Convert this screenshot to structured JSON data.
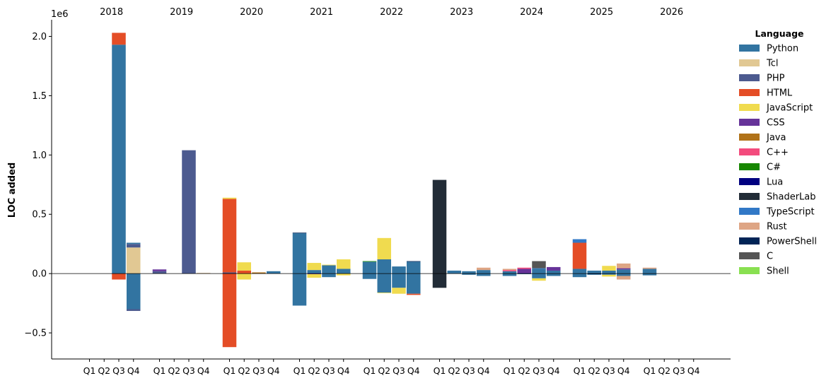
{
  "chart_data": {
    "type": "bar",
    "subtype": "stacked-diverging",
    "title": "",
    "ylabel": "LOC added",
    "xlabel": "",
    "y_scale_label": "1e6",
    "ylim": [
      -0.72,
      2.14
    ],
    "yticks": [
      -0.5,
      0.0,
      0.5,
      1.0,
      1.5,
      2.0
    ],
    "ytick_labels": [
      "−0.5",
      "0.0",
      "0.5",
      "1.0",
      "1.5",
      "2.0"
    ],
    "zero_line": true,
    "grid": false,
    "legend_title": "Language",
    "legend_position": "right",
    "years": [
      "2018",
      "2019",
      "2020",
      "2021",
      "2022",
      "2023",
      "2024",
      "2025",
      "2026"
    ],
    "quarters": [
      "Q1",
      "Q2",
      "Q3",
      "Q4"
    ],
    "series": [
      {
        "name": "Python",
        "color": "#3274a1"
      },
      {
        "name": "Tcl",
        "color": "#e1c893"
      },
      {
        "name": "PHP",
        "color": "#4c5a8f"
      },
      {
        "name": "HTML",
        "color": "#e44d26"
      },
      {
        "name": "JavaScript",
        "color": "#f0db4f"
      },
      {
        "name": "CSS",
        "color": "#663399"
      },
      {
        "name": "Java",
        "color": "#b07219"
      },
      {
        "name": "C++",
        "color": "#f34b7d"
      },
      {
        "name": "C#",
        "color": "#178600"
      },
      {
        "name": "Lua",
        "color": "#000080"
      },
      {
        "name": "ShaderLab",
        "color": "#222c37"
      },
      {
        "name": "TypeScript",
        "color": "#3178c6"
      },
      {
        "name": "Rust",
        "color": "#dea584"
      },
      {
        "name": "PowerShell",
        "color": "#012456"
      },
      {
        "name": "C",
        "color": "#555555"
      },
      {
        "name": "Shell",
        "color": "#89e051"
      }
    ],
    "values_unit": "millions of lines",
    "bars": [
      {
        "year": "2018",
        "quarter": "Q3",
        "pos": [
          {
            "lang": "Python",
            "v": 1.93
          },
          {
            "lang": "HTML",
            "v": 0.1
          }
        ],
        "neg": [
          {
            "lang": "HTML",
            "v": 0.05
          }
        ]
      },
      {
        "year": "2018",
        "quarter": "Q4",
        "pos": [
          {
            "lang": "Tcl",
            "v": 0.22
          },
          {
            "lang": "PHP",
            "v": 0.03
          },
          {
            "lang": "Python",
            "v": 0.01
          }
        ],
        "neg": [
          {
            "lang": "Python",
            "v": 0.3
          },
          {
            "lang": "PHP",
            "v": 0.015
          }
        ]
      },
      {
        "year": "2019",
        "quarter": "Q1",
        "pos": [
          {
            "lang": "PHP",
            "v": 0.02
          },
          {
            "lang": "CSS",
            "v": 0.015
          }
        ],
        "neg": []
      },
      {
        "year": "2019",
        "quarter": "Q3",
        "pos": [
          {
            "lang": "PHP",
            "v": 1.04
          }
        ],
        "neg": []
      },
      {
        "year": "2019",
        "quarter": "Q4",
        "pos": [
          {
            "lang": "Java",
            "v": 0.004
          }
        ],
        "neg": []
      },
      {
        "year": "2020",
        "quarter": "Q1",
        "pos": [
          {
            "lang": "PHP",
            "v": 0.01
          },
          {
            "lang": "HTML",
            "v": 0.62
          },
          {
            "lang": "JavaScript",
            "v": 0.01
          }
        ],
        "neg": [
          {
            "lang": "HTML",
            "v": 0.62
          }
        ]
      },
      {
        "year": "2020",
        "quarter": "Q2",
        "pos": [
          {
            "lang": "HTML",
            "v": 0.025
          },
          {
            "lang": "JavaScript",
            "v": 0.07
          }
        ],
        "neg": [
          {
            "lang": "JavaScript",
            "v": 0.05
          }
        ]
      },
      {
        "year": "2020",
        "quarter": "Q3",
        "pos": [
          {
            "lang": "Java",
            "v": 0.01
          }
        ],
        "neg": []
      },
      {
        "year": "2020",
        "quarter": "Q4",
        "pos": [
          {
            "lang": "Python",
            "v": 0.02
          }
        ],
        "neg": []
      },
      {
        "year": "2021",
        "quarter": "Q1",
        "pos": [
          {
            "lang": "Python",
            "v": 0.34
          },
          {
            "lang": "PowerShell",
            "v": 0.005
          }
        ],
        "neg": [
          {
            "lang": "Python",
            "v": 0.27
          }
        ]
      },
      {
        "year": "2021",
        "quarter": "Q2",
        "pos": [
          {
            "lang": "Python",
            "v": 0.03
          },
          {
            "lang": "JavaScript",
            "v": 0.06
          }
        ],
        "neg": [
          {
            "lang": "CSS",
            "v": 0.005
          },
          {
            "lang": "JavaScript",
            "v": 0.03
          }
        ]
      },
      {
        "year": "2021",
        "quarter": "Q3",
        "pos": [
          {
            "lang": "Python",
            "v": 0.07
          },
          {
            "lang": "JavaScript",
            "v": 0.005
          }
        ],
        "neg": [
          {
            "lang": "Python",
            "v": 0.03
          }
        ]
      },
      {
        "year": "2021",
        "quarter": "Q4",
        "pos": [
          {
            "lang": "Python",
            "v": 0.04
          },
          {
            "lang": "JavaScript",
            "v": 0.08
          }
        ],
        "neg": [
          {
            "lang": "JavaScript",
            "v": 0.015
          }
        ]
      },
      {
        "year": "2022",
        "quarter": "Q1",
        "pos": [
          {
            "lang": "Python",
            "v": 0.1
          },
          {
            "lang": "C#",
            "v": 0.005
          }
        ],
        "neg": [
          {
            "lang": "Python",
            "v": 0.045
          }
        ]
      },
      {
        "year": "2022",
        "quarter": "Q2",
        "pos": [
          {
            "lang": "Python",
            "v": 0.12
          },
          {
            "lang": "JavaScript",
            "v": 0.18
          }
        ],
        "neg": [
          {
            "lang": "Python",
            "v": 0.16
          },
          {
            "lang": "JavaScript",
            "v": 0.005
          }
        ]
      },
      {
        "year": "2022",
        "quarter": "Q3",
        "pos": [
          {
            "lang": "Python",
            "v": 0.06
          }
        ],
        "neg": [
          {
            "lang": "Python",
            "v": 0.12
          },
          {
            "lang": "JavaScript",
            "v": 0.05
          }
        ]
      },
      {
        "year": "2022",
        "quarter": "Q4",
        "pos": [
          {
            "lang": "Python",
            "v": 0.1
          },
          {
            "lang": "PowerShell",
            "v": 0.005
          }
        ],
        "neg": [
          {
            "lang": "Python",
            "v": 0.17
          },
          {
            "lang": "HTML",
            "v": 0.01
          }
        ]
      },
      {
        "year": "2023",
        "quarter": "Q1",
        "pos": [
          {
            "lang": "ShaderLab",
            "v": 0.79
          }
        ],
        "neg": [
          {
            "lang": "ShaderLab",
            "v": 0.12
          }
        ]
      },
      {
        "year": "2023",
        "quarter": "Q2",
        "pos": [
          {
            "lang": "Python",
            "v": 0.025
          }
        ],
        "neg": []
      },
      {
        "year": "2023",
        "quarter": "Q3",
        "pos": [
          {
            "lang": "Python",
            "v": 0.02
          }
        ],
        "neg": [
          {
            "lang": "Python",
            "v": 0.01
          }
        ]
      },
      {
        "year": "2023",
        "quarter": "Q4",
        "pos": [
          {
            "lang": "Python",
            "v": 0.03
          },
          {
            "lang": "Rust",
            "v": 0.02
          }
        ],
        "neg": [
          {
            "lang": "Python",
            "v": 0.02
          }
        ]
      },
      {
        "year": "2024",
        "quarter": "Q1",
        "pos": [
          {
            "lang": "Python",
            "v": 0.02
          },
          {
            "lang": "C++",
            "v": 0.01
          },
          {
            "lang": "Rust",
            "v": 0.01
          }
        ],
        "neg": [
          {
            "lang": "Python",
            "v": 0.02
          }
        ]
      },
      {
        "year": "2024",
        "quarter": "Q2",
        "pos": [
          {
            "lang": "CSS",
            "v": 0.04
          },
          {
            "lang": "C++",
            "v": 0.01
          }
        ],
        "neg": [
          {
            "lang": "Python",
            "v": 0.005
          }
        ]
      },
      {
        "year": "2024",
        "quarter": "Q3",
        "pos": [
          {
            "lang": "Python",
            "v": 0.04
          },
          {
            "lang": "TypeScript",
            "v": 0.005
          },
          {
            "lang": "C",
            "v": 0.06
          }
        ],
        "neg": [
          {
            "lang": "Python",
            "v": 0.04
          },
          {
            "lang": "JavaScript",
            "v": 0.02
          }
        ]
      },
      {
        "year": "2024",
        "quarter": "Q4",
        "pos": [
          {
            "lang": "Python",
            "v": 0.025
          },
          {
            "lang": "CSS",
            "v": 0.03
          }
        ],
        "neg": [
          {
            "lang": "Python",
            "v": 0.02
          }
        ]
      },
      {
        "year": "2025",
        "quarter": "Q1",
        "pos": [
          {
            "lang": "Python",
            "v": 0.04
          },
          {
            "lang": "HTML",
            "v": 0.22
          },
          {
            "lang": "TypeScript",
            "v": 0.03
          }
        ],
        "neg": [
          {
            "lang": "Python",
            "v": 0.03
          }
        ]
      },
      {
        "year": "2025",
        "quarter": "Q2",
        "pos": [
          {
            "lang": "Python",
            "v": 0.025
          }
        ],
        "neg": [
          {
            "lang": "PowerShell",
            "v": 0.005
          },
          {
            "lang": "Python",
            "v": 0.005
          }
        ]
      },
      {
        "year": "2025",
        "quarter": "Q3",
        "pos": [
          {
            "lang": "Python",
            "v": 0.025
          },
          {
            "lang": "JavaScript",
            "v": 0.04
          }
        ],
        "neg": [
          {
            "lang": "Python",
            "v": 0.01
          },
          {
            "lang": "JavaScript",
            "v": 0.015
          }
        ]
      },
      {
        "year": "2025",
        "quarter": "Q4",
        "pos": [
          {
            "lang": "Python",
            "v": 0.035
          },
          {
            "lang": "CSS",
            "v": 0.01
          },
          {
            "lang": "Rust",
            "v": 0.04
          }
        ],
        "neg": [
          {
            "lang": "Python",
            "v": 0.02
          },
          {
            "lang": "Rust",
            "v": 0.03
          }
        ]
      },
      {
        "year": "2026",
        "quarter": "Q1",
        "pos": [
          {
            "lang": "Python",
            "v": 0.04
          },
          {
            "lang": "Rust",
            "v": 0.01
          }
        ],
        "neg": [
          {
            "lang": "Python",
            "v": 0.015
          }
        ]
      }
    ]
  }
}
